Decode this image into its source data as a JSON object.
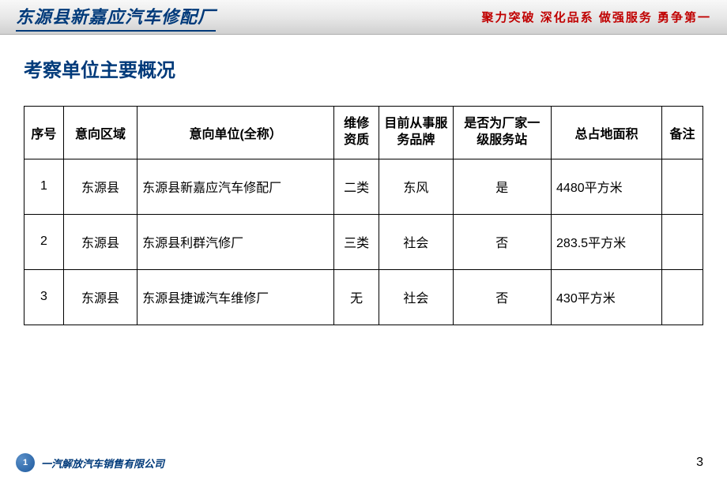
{
  "header": {
    "company_title": "东源县新嘉应汽车修配厂",
    "slogan": "聚力突破  深化品系  做强服务  勇争第一"
  },
  "section_title": "考察单位主要概况",
  "table": {
    "columns": [
      "序号",
      "意向区域",
      "意向单位(全称）",
      "维修资质",
      "目前从事服务品牌",
      "是否为厂家一级服务站",
      "总占地面积",
      "备注"
    ],
    "rows": [
      {
        "seq": "1",
        "region": "东源县",
        "unit": "东源县新嘉应汽车修配厂",
        "qual": "二类",
        "brand": "东风",
        "station": "是",
        "area": "4480平方米",
        "note": ""
      },
      {
        "seq": "2",
        "region": "东源县",
        "unit": "东源县利群汽修厂",
        "qual": "三类",
        "brand": "社会",
        "station": "否",
        "area": "283.5平方米",
        "note": ""
      },
      {
        "seq": "3",
        "region": "东源县",
        "unit": "东源县捷诚汽车维修厂",
        "qual": "无",
        "brand": "社会",
        "station": "否",
        "area": "430平方米",
        "note": ""
      }
    ]
  },
  "footer": {
    "company": "一汽解放汽车销售有限公司"
  },
  "page_number": "3",
  "colors": {
    "primary_blue": "#003a7a",
    "slogan_red": "#c00000",
    "border": "#000000"
  }
}
